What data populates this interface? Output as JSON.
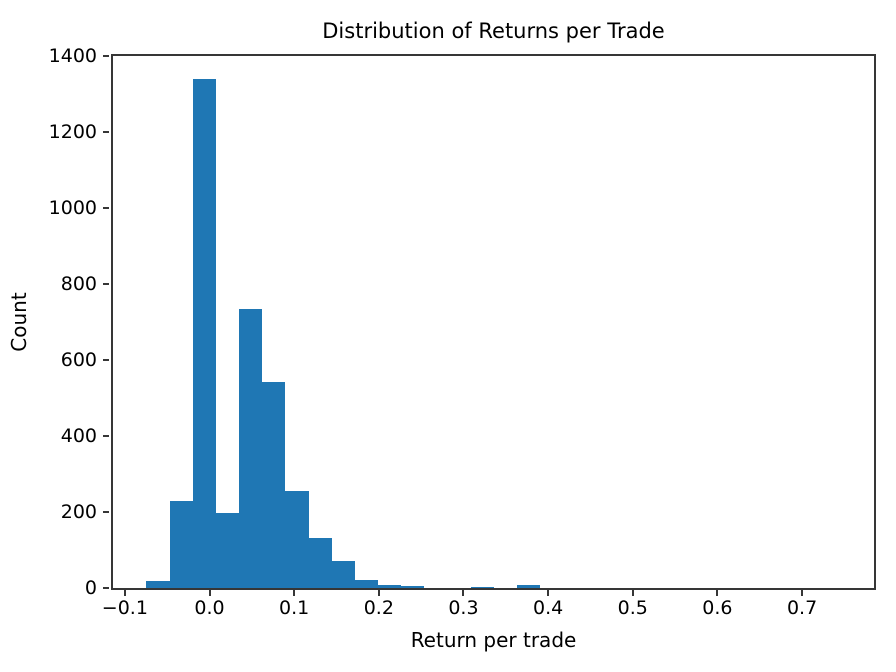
{
  "chart_data": {
    "type": "bar",
    "subtype": "histogram",
    "title": "Distribution of Returns per Trade",
    "xlabel": "Return per trade",
    "ylabel": "Count",
    "bar_color": "#1f77b4",
    "axis_color": "#363636",
    "text_color": "#000000",
    "background_color": "#ffffff",
    "grid": false,
    "legend": "none",
    "xlim": [
      -0.114,
      0.785
    ],
    "ylim": [
      0,
      1400
    ],
    "x_ticks": [
      -0.1,
      0.0,
      0.1,
      0.2,
      0.3,
      0.4,
      0.5,
      0.6,
      0.7
    ],
    "x_tick_labels": [
      "−0.1",
      "0.0",
      "0.1",
      "0.2",
      "0.3",
      "0.4",
      "0.5",
      "0.6",
      "0.7"
    ],
    "y_ticks": [
      0,
      200,
      400,
      600,
      800,
      1000,
      1200,
      1400
    ],
    "y_tick_labels": [
      "0",
      "200",
      "400",
      "600",
      "800",
      "1000",
      "1200",
      "1400"
    ],
    "bins": {
      "start": -0.0746,
      "width": 0.02737,
      "n": 17
    },
    "counts": [
      18,
      228,
      1340,
      197,
      735,
      541,
      254,
      132,
      72,
      22,
      8,
      5,
      0,
      0,
      2,
      0,
      7
    ]
  }
}
